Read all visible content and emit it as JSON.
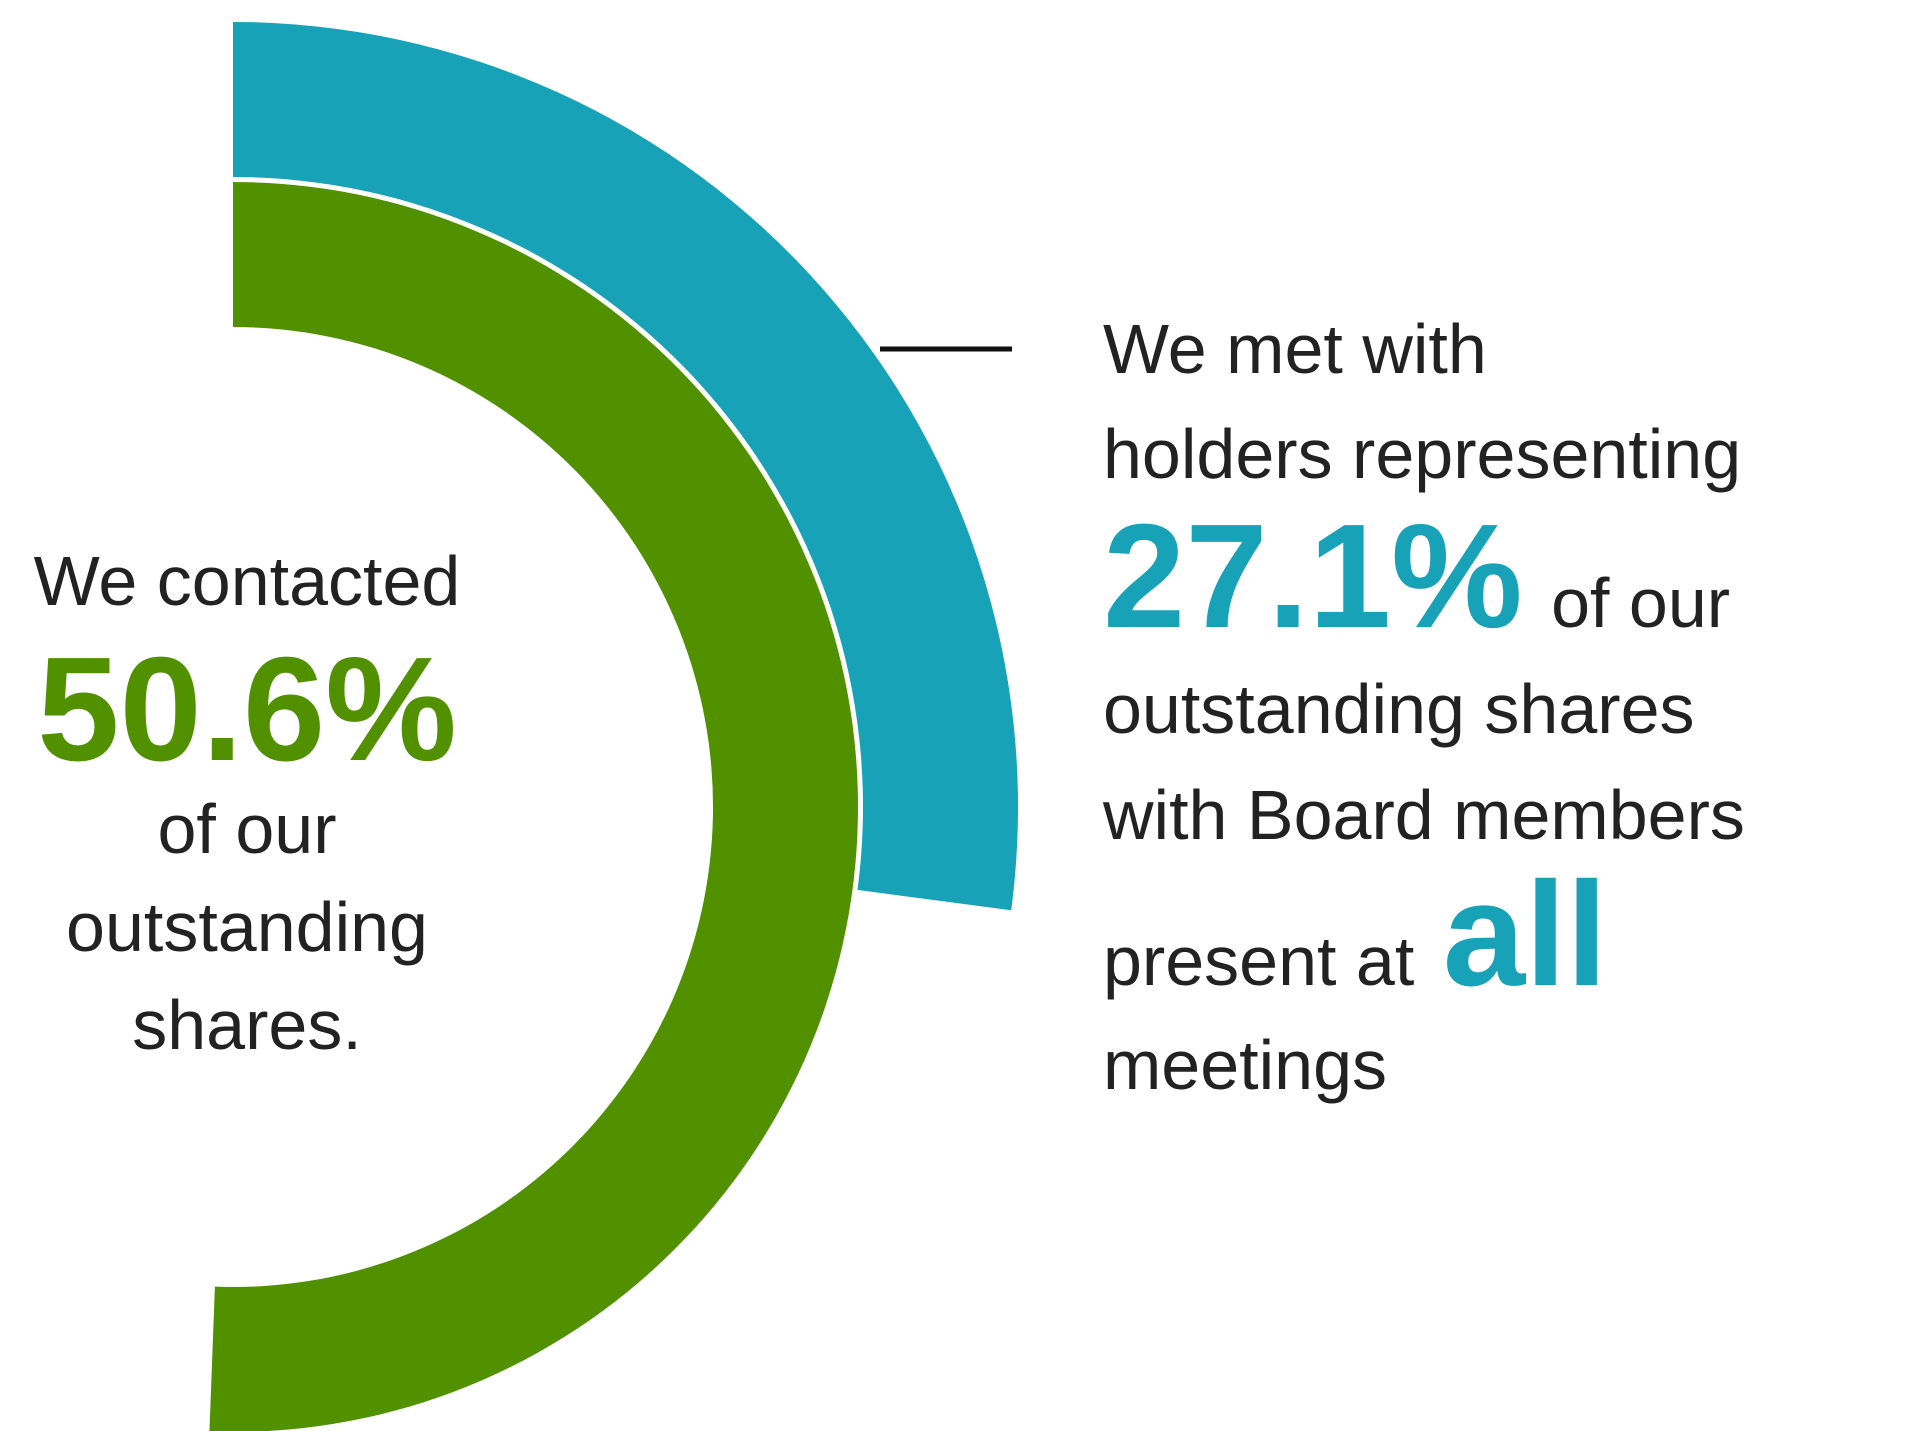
{
  "chart_data": {
    "type": "donut",
    "series": [
      {
        "value": 50.6,
        "unit": "%",
        "color": "#519100"
      },
      {
        "value": 27.1,
        "unit": "%",
        "color": "#17a2b7"
      }
    ]
  },
  "left_callout": {
    "line1": "We contacted",
    "value": "50.6%",
    "line2": "of our",
    "line3": "outstanding",
    "line4": "shares."
  },
  "right_callout": {
    "line1": "We met with",
    "line2": "holders representing",
    "value": "27.1%",
    "value_suffix": "of our",
    "line3": "outstanding shares",
    "line4": "with Board members",
    "line5_prefix": "present at",
    "emphasis": "all",
    "line6": "meetings"
  }
}
